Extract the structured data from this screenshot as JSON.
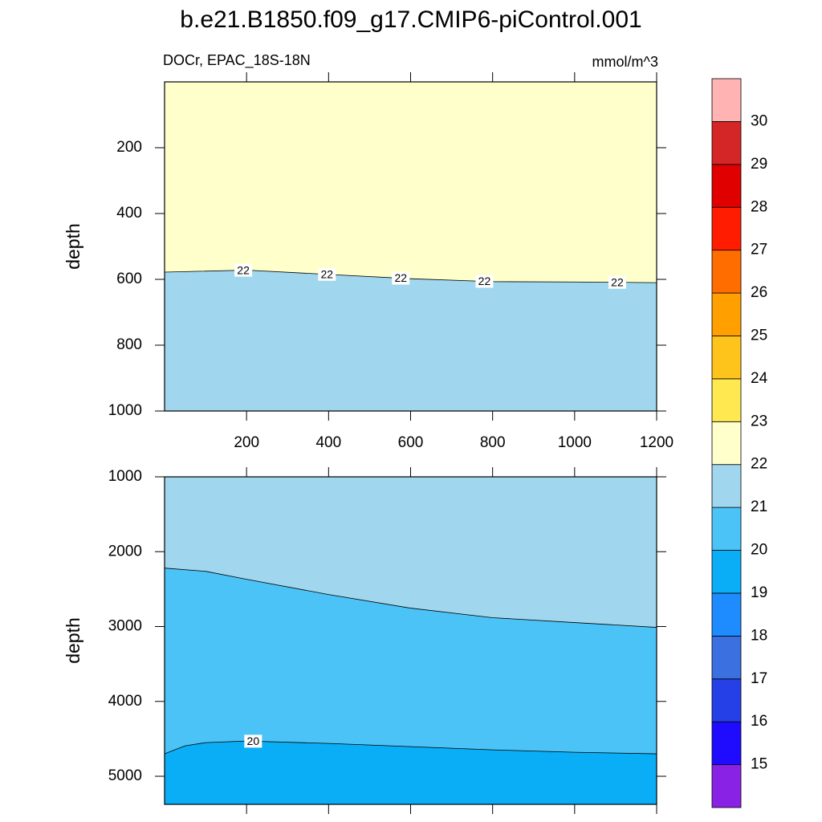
{
  "title": "b.e21.B1850.f09_g17.CMIP6-piControl.001",
  "colorbar": {
    "levels": [
      15,
      16,
      17,
      18,
      19,
      20,
      21,
      22,
      23,
      24,
      25,
      26,
      27,
      28,
      29,
      30
    ],
    "colors": [
      "#8a22e6",
      "#1f0cff",
      "#2540e6",
      "#3a70e0",
      "#1e8cff",
      "#0aaef7",
      "#4cc3f6",
      "#a0d6ee",
      "#ffffcc",
      "#ffe850",
      "#ffc41c",
      "#ffa000",
      "#ff6c00",
      "#ff1c00",
      "#e00000",
      "#d42626",
      "#ffb3b3"
    ]
  },
  "chart_data": [
    {
      "type": "contour",
      "left_label": "DOCr, EPAC_18S-18N",
      "right_label": "mmol/m^3",
      "ylabel": "depth",
      "xlim": [
        0,
        1200
      ],
      "xticks": [
        200,
        400,
        600,
        800,
        1000,
        1200
      ],
      "xtick_labels": true,
      "ylim": [
        0,
        1000
      ],
      "yticks": [
        200,
        400,
        600,
        800,
        1000
      ],
      "y_reversed": true,
      "contours": [
        {
          "level": 22,
          "x": [
            0,
            200,
            400,
            600,
            800,
            1000,
            1200
          ],
          "values": [
            578,
            572,
            585,
            598,
            607,
            608,
            610
          ]
        }
      ]
    },
    {
      "type": "contour",
      "ylabel": "depth",
      "xlim": [
        0,
        1200
      ],
      "xticks": [
        200,
        400,
        600,
        800,
        1000,
        1200
      ],
      "xtick_labels": false,
      "ylim": [
        1000,
        5375
      ],
      "yticks": [
        1000,
        2000,
        3000,
        4000,
        5000
      ],
      "y_reversed": true,
      "contours": [
        {
          "level": 21,
          "x": [
            0,
            100,
            200,
            400,
            600,
            800,
            1000,
            1200
          ],
          "values": [
            2219,
            2262,
            2369,
            2572,
            2754,
            2882,
            2947,
            3011
          ]
        },
        {
          "level": 20,
          "x": [
            0,
            50,
            100,
            200,
            400,
            600,
            800,
            1000,
            1200
          ],
          "values": [
            4700,
            4594,
            4551,
            4529,
            4561,
            4604,
            4647,
            4679,
            4700
          ]
        }
      ]
    }
  ]
}
